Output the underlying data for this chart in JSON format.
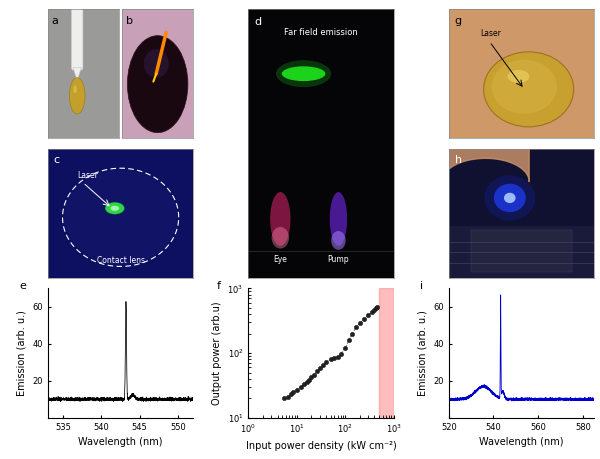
{
  "panel_e": {
    "label": "e",
    "xlabel": "Wavelength (nm)",
    "ylabel": "Emission (arb. u.)",
    "xlim": [
      533,
      552
    ],
    "ylim": [
      0,
      70
    ],
    "xticks": [
      535,
      540,
      545,
      550
    ],
    "yticks": [
      20,
      40,
      60
    ],
    "peak_wavelength": 543.2,
    "peak_height": 63,
    "baseline": 10,
    "noise_level": 0.4,
    "line_color": "#000000"
  },
  "panel_f": {
    "label": "f",
    "xlabel": "Input power density (kW cm⁻²)",
    "ylabel": "Output power (arb.u)",
    "xlim_log": [
      1,
      1000
    ],
    "ylim_log": [
      10,
      1000
    ],
    "red_region_start": 500,
    "marker_color": "#333333",
    "data_x": [
      5.5,
      6.5,
      7.5,
      8.5,
      10,
      12,
      14,
      16,
      18,
      20,
      23,
      26,
      30,
      35,
      40,
      50,
      60,
      70,
      80,
      100,
      120,
      140,
      170,
      200,
      250,
      300,
      350,
      400,
      430,
      460
    ],
    "data_y": [
      20,
      21,
      23,
      25,
      27,
      30,
      33,
      36,
      38,
      42,
      46,
      52,
      58,
      65,
      72,
      80,
      85,
      88,
      95,
      120,
      160,
      200,
      250,
      290,
      340,
      390,
      430,
      470,
      490,
      510
    ]
  },
  "panel_i": {
    "label": "i",
    "xlabel": "Wavelength (nm)",
    "ylabel": "Emission (arb. u.)",
    "xlim": [
      520,
      585
    ],
    "ylim": [
      0,
      70
    ],
    "xticks": [
      520,
      540,
      560,
      580
    ],
    "yticks": [
      20,
      40,
      60
    ],
    "peak_wavelength": 543.2,
    "peak_height": 65,
    "shoulder_wavelength": 535.5,
    "shoulder_height": 17,
    "baseline": 10,
    "noise_level": 0.3,
    "line_color": "#0000cc"
  },
  "layout": {
    "label_fontsize": 8,
    "axis_fontsize": 7,
    "tick_fontsize": 6
  }
}
